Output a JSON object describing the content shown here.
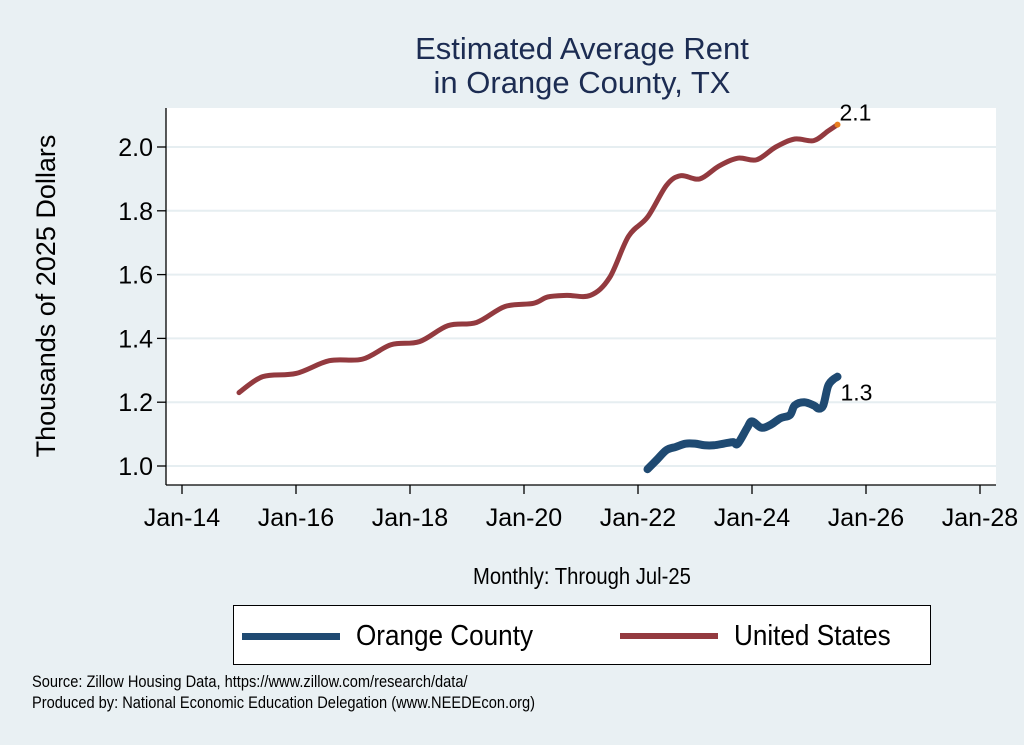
{
  "chart_data": {
    "type": "line",
    "title": "Estimated Average Rent\nin Orange County, TX",
    "title_lines": [
      "Estimated Average Rent",
      "in Orange County, TX"
    ],
    "xlabel": "Monthly: Through Jul-25",
    "ylabel": "Thousands of 2025 Dollars",
    "ylim": [
      0.94,
      2.12
    ],
    "xlim": [
      "2013-07",
      "2028-03"
    ],
    "yticks": [
      1.0,
      1.2,
      1.4,
      1.6,
      1.8,
      2.0
    ],
    "ytick_labels": [
      "1.0",
      "1.2",
      "1.4",
      "1.6",
      "1.8",
      "2.0"
    ],
    "xticks": [
      "2014-01",
      "2016-01",
      "2018-01",
      "2020-01",
      "2022-01",
      "2024-01",
      "2026-01",
      "2028-01"
    ],
    "xtick_labels": [
      "Jan-14",
      "Jan-16",
      "Jan-18",
      "Jan-20",
      "Jan-22",
      "Jan-24",
      "Jan-26",
      "Jan-28"
    ],
    "grid": true,
    "legend_position": "bottom",
    "series": [
      {
        "name": "Orange County",
        "color": "#1f4a72",
        "end_label": "1.3",
        "points": [
          [
            "2022-03",
            0.99
          ],
          [
            "2022-05",
            1.02
          ],
          [
            "2022-07",
            1.05
          ],
          [
            "2022-09",
            1.06
          ],
          [
            "2022-11",
            1.07
          ],
          [
            "2023-01",
            1.07
          ],
          [
            "2023-03",
            1.065
          ],
          [
            "2023-05",
            1.065
          ],
          [
            "2023-07",
            1.07
          ],
          [
            "2023-09",
            1.075
          ],
          [
            "2023-10",
            1.07
          ],
          [
            "2023-12",
            1.12
          ],
          [
            "2024-01",
            1.14
          ],
          [
            "2024-03",
            1.12
          ],
          [
            "2024-05",
            1.13
          ],
          [
            "2024-07",
            1.15
          ],
          [
            "2024-09",
            1.16
          ],
          [
            "2024-10",
            1.19
          ],
          [
            "2024-12",
            1.2
          ],
          [
            "2025-02",
            1.19
          ],
          [
            "2025-03",
            1.18
          ],
          [
            "2025-04",
            1.19
          ],
          [
            "2025-05",
            1.25
          ],
          [
            "2025-06",
            1.27
          ],
          [
            "2025-07",
            1.28
          ]
        ]
      },
      {
        "name": "United States",
        "color": "#933a3f",
        "end_label": "2.1",
        "end_marker_color": "#e87d1e",
        "points": [
          [
            "2015-01",
            1.23
          ],
          [
            "2015-06",
            1.28
          ],
          [
            "2016-01",
            1.29
          ],
          [
            "2016-08",
            1.33
          ],
          [
            "2017-03",
            1.335
          ],
          [
            "2017-09",
            1.38
          ],
          [
            "2018-03",
            1.39
          ],
          [
            "2018-09",
            1.44
          ],
          [
            "2019-03",
            1.45
          ],
          [
            "2019-09",
            1.5
          ],
          [
            "2020-03",
            1.51
          ],
          [
            "2020-06",
            1.53
          ],
          [
            "2020-10",
            1.535
          ],
          [
            "2021-03",
            1.535
          ],
          [
            "2021-07",
            1.59
          ],
          [
            "2021-11",
            1.72
          ],
          [
            "2022-03",
            1.78
          ],
          [
            "2022-07",
            1.88
          ],
          [
            "2022-10",
            1.91
          ],
          [
            "2023-02",
            1.9
          ],
          [
            "2023-06",
            1.94
          ],
          [
            "2023-10",
            1.965
          ],
          [
            "2024-02",
            1.96
          ],
          [
            "2024-06",
            2.0
          ],
          [
            "2024-10",
            2.025
          ],
          [
            "2025-02",
            2.02
          ],
          [
            "2025-05",
            2.05
          ],
          [
            "2025-07",
            2.07
          ]
        ]
      }
    ]
  },
  "footer": {
    "source": "Source: Zillow Housing Data, https://www.zillow.com/research/data/",
    "producer": "Produced by: National Economic Education Delegation (www.NEEDEcon.org)"
  }
}
